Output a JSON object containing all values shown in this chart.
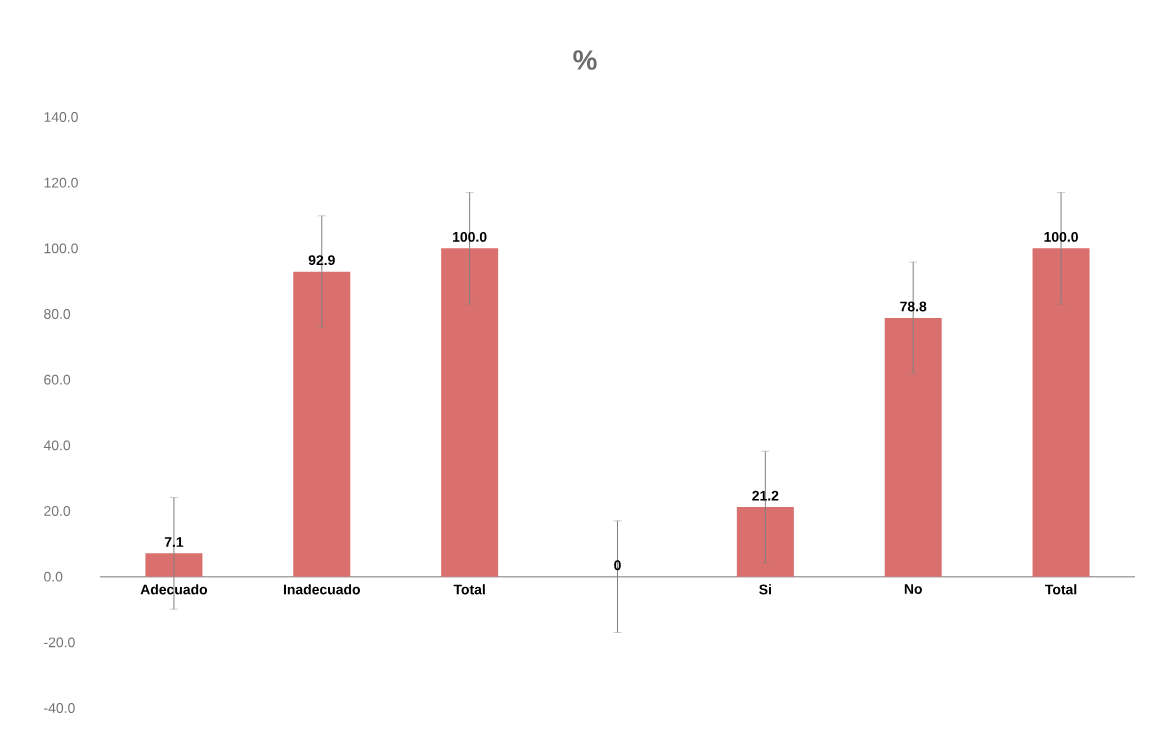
{
  "chart_data": {
    "type": "bar",
    "title": "%",
    "categories": [
      "Adecuado",
      "Inadecuado",
      "Total",
      null,
      "Si",
      "No",
      "Total"
    ],
    "values": [
      7.1,
      92.9,
      100.0,
      0,
      21.2,
      78.8,
      100.0
    ],
    "value_labels": [
      "7.1",
      "92.9",
      "100.0",
      "0",
      "21.2",
      "78.8",
      "100.0"
    ],
    "errors": [
      17,
      17,
      17,
      17,
      17,
      17,
      17
    ],
    "color": "#d9706e",
    "ylim": [
      -40,
      140
    ],
    "yticks": [
      {
        "value": -40,
        "label": "-40.0"
      },
      {
        "value": -20,
        "label": "-20.0"
      },
      {
        "value": 0,
        "label": "0.0"
      },
      {
        "value": 20,
        "label": "20.0"
      },
      {
        "value": 40,
        "label": "40.0"
      },
      {
        "value": 60,
        "label": "60.0"
      },
      {
        "value": 80,
        "label": "80.0"
      },
      {
        "value": 100,
        "label": "100.0"
      },
      {
        "value": 120,
        "label": "120.0"
      },
      {
        "value": 140,
        "label": "140.0"
      }
    ]
  }
}
